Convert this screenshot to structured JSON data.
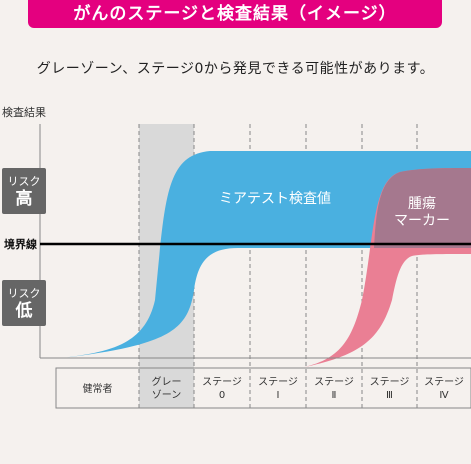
{
  "header": {
    "title": "がんのステージと検査結果（イメージ）"
  },
  "subtitle": "グレーゾーン、ステージ0から発見できる可能性があります。",
  "y_axis": {
    "title": "検査結果",
    "risk_high": {
      "line1": "リスク",
      "line2": "高"
    },
    "risk_low": {
      "line1": "リスク",
      "line2": "低"
    },
    "threshold": "境界線"
  },
  "stages": [
    {
      "line1": "健常者",
      "line2": ""
    },
    {
      "line1": "グレー",
      "line2": "ゾーン"
    },
    {
      "line1": "ステージ",
      "line2": "0"
    },
    {
      "line1": "ステージ",
      "line2": "Ⅰ"
    },
    {
      "line1": "ステージ",
      "line2": "Ⅱ"
    },
    {
      "line1": "ステージ",
      "line2": "Ⅲ"
    },
    {
      "line1": "ステージ",
      "line2": "Ⅳ"
    }
  ],
  "series": [
    {
      "name": "ミアテスト検査値",
      "color": "#4ab0e0"
    },
    {
      "name_line1": "腫瘍",
      "name_line2": "マーカー",
      "color": "#ea7f94"
    }
  ],
  "colors": {
    "title_bg": "#e4007f",
    "gray_zone": "#d9d9d9",
    "grid": "#888888",
    "risk_box": "#666666"
  }
}
